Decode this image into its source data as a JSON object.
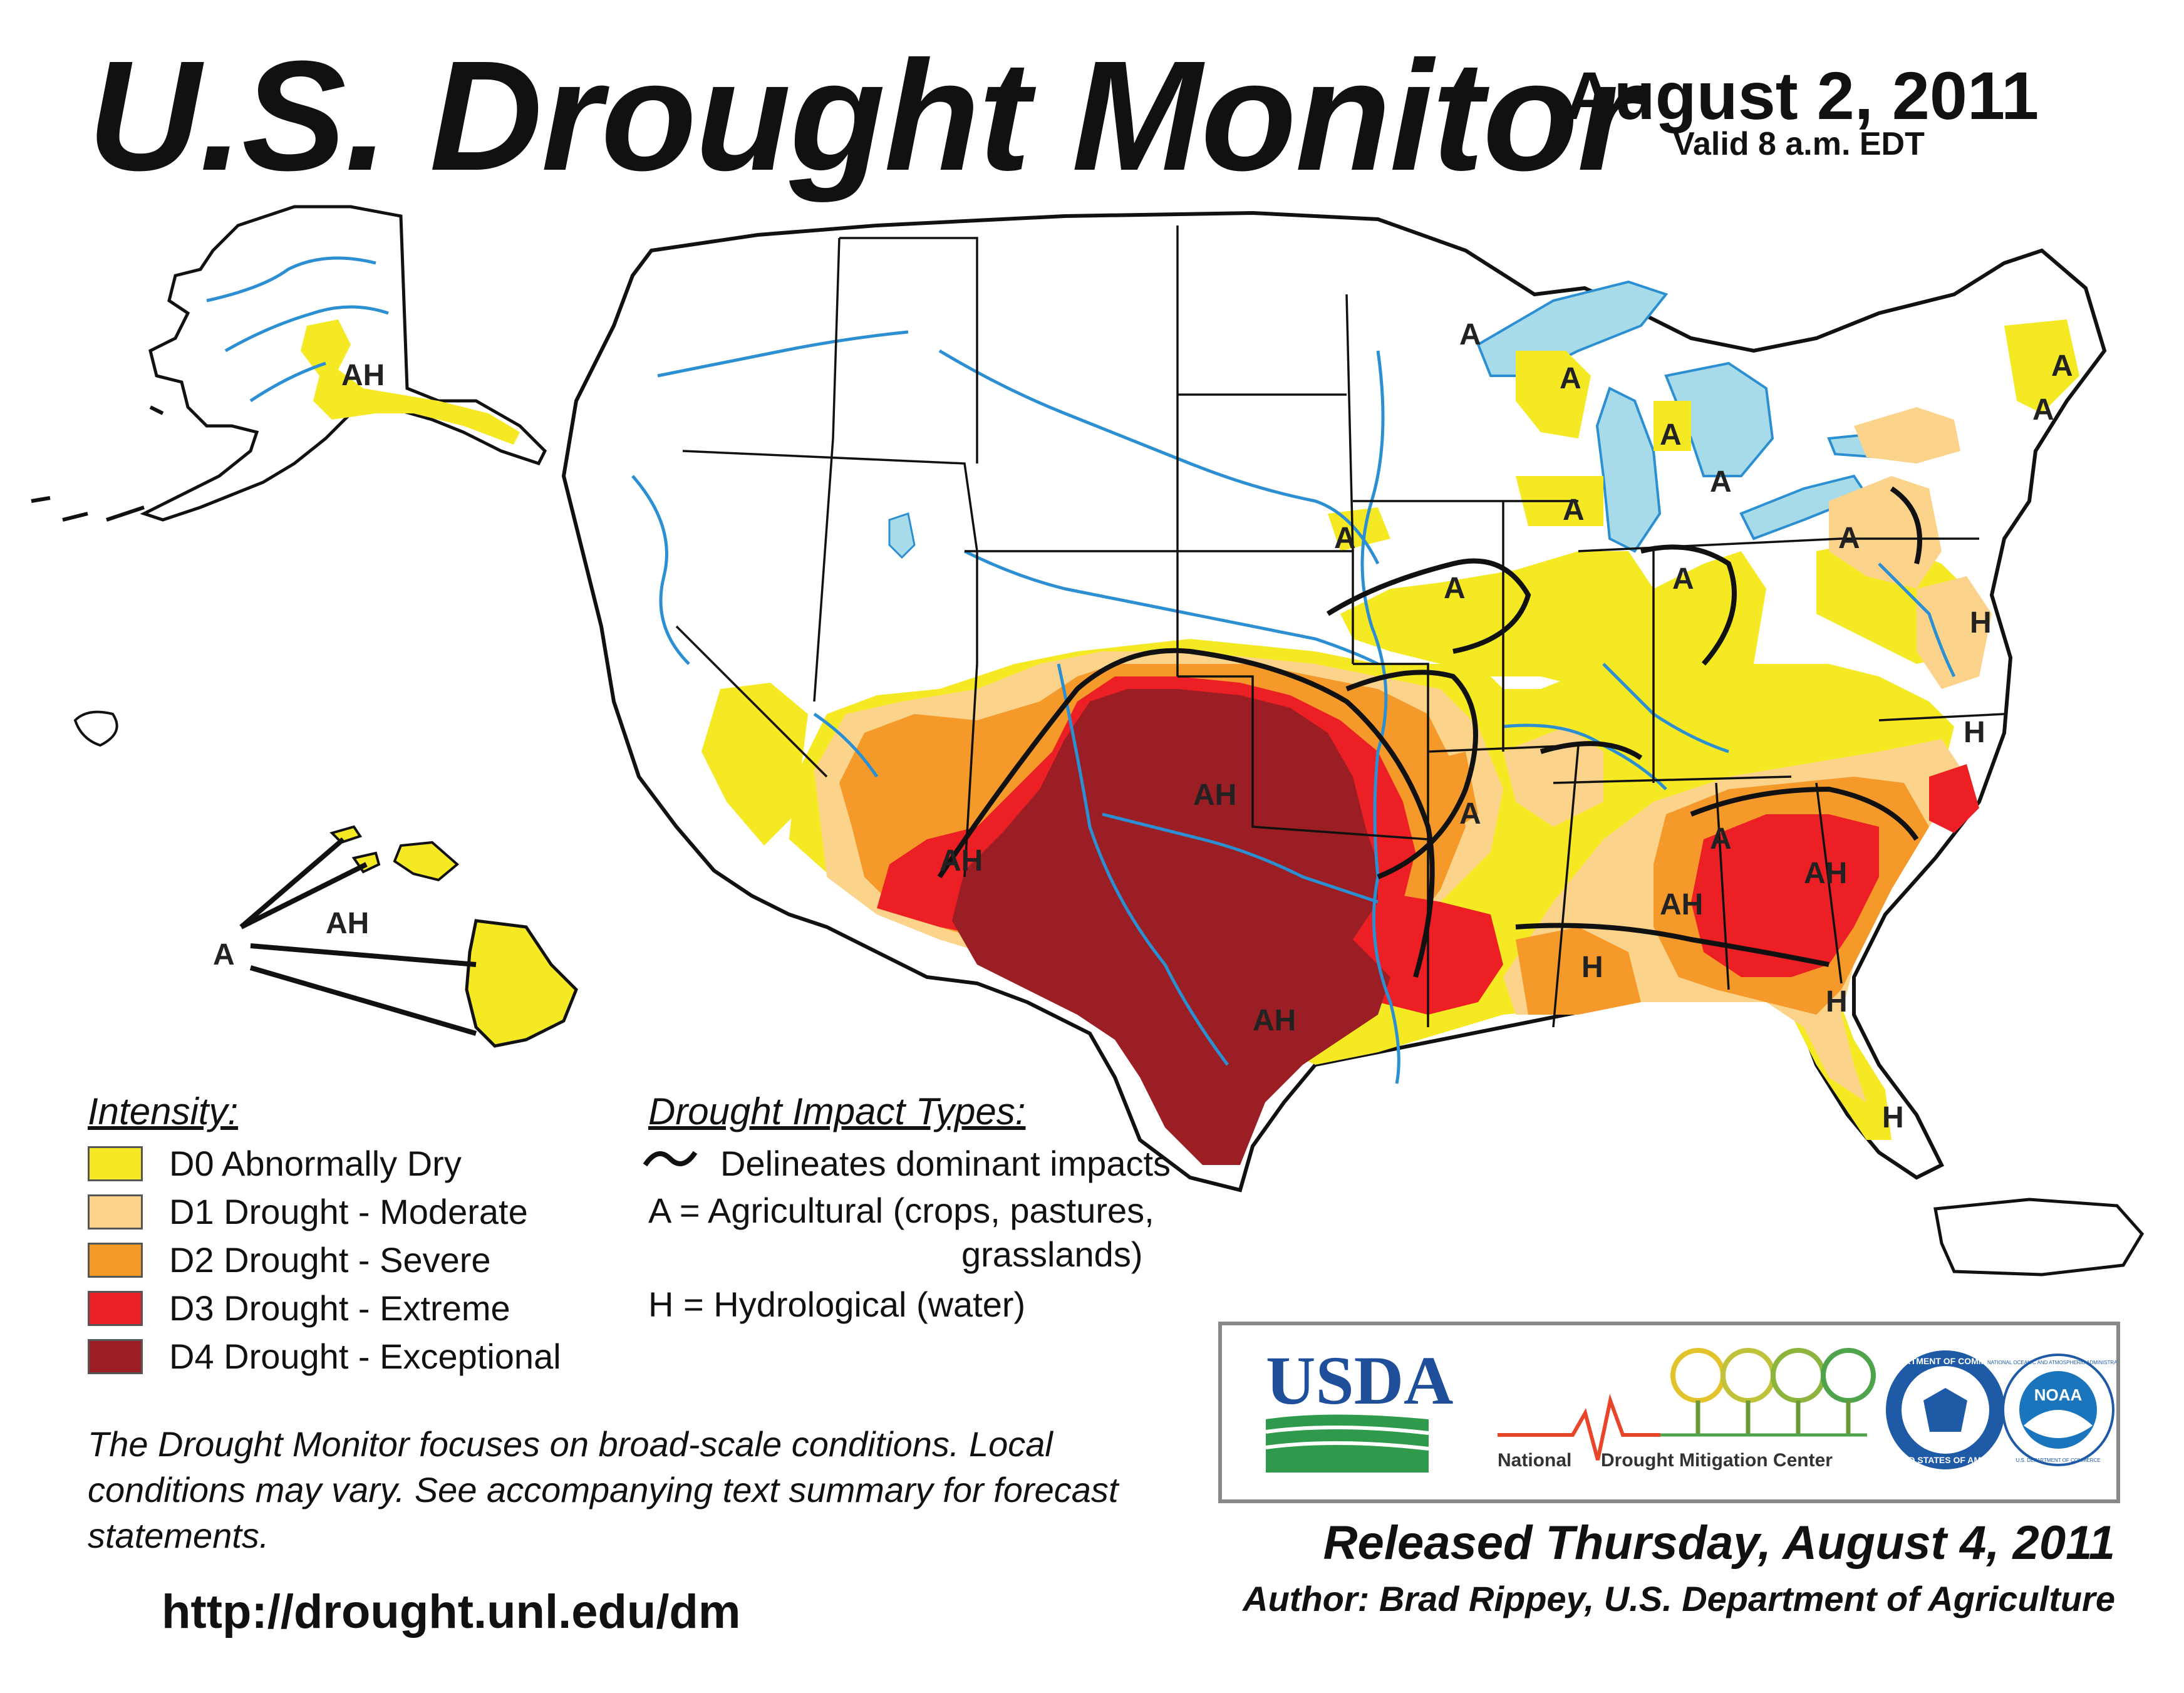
{
  "header": {
    "title": "U.S. Drought Monitor",
    "date": "August 2, 2011",
    "valid": "Valid 8 a.m. EDT"
  },
  "colors": {
    "D0": "#f5e923",
    "D1": "#fbd38a",
    "D2": "#f59a2a",
    "D3": "#ec2024",
    "D4": "#9b1e24",
    "water": "#a8dbea",
    "river": "#2b8fd2",
    "county_line": "#a0a0a0"
  },
  "legend": {
    "intensity_heading": "Intensity:",
    "items": [
      {
        "code": "D0",
        "label": "D0 Abnormally Dry"
      },
      {
        "code": "D1",
        "label": "D1 Drought - Moderate"
      },
      {
        "code": "D2",
        "label": "D2 Drought - Severe"
      },
      {
        "code": "D3",
        "label": "D3 Drought - Extreme"
      },
      {
        "code": "D4",
        "label": "D4 Drought - Exceptional"
      }
    ],
    "impact_heading": "Drought Impact Types:",
    "impact_lines": [
      "Delineates dominant impacts",
      "A = Agricultural (crops, pastures,",
      "grasslands)",
      "H = Hydrological (water)"
    ]
  },
  "map_labels": [
    "AH",
    "A",
    "A",
    "A",
    "A",
    "A",
    "A",
    "A",
    "A",
    "A",
    "H",
    "AH",
    "AH",
    "A",
    "A",
    "AH",
    "AH",
    "AH",
    "H",
    "H",
    "H",
    "A",
    "A",
    "AH",
    "H",
    "A",
    "AH"
  ],
  "note": "The Drought Monitor focuses on broad-scale conditions. Local conditions may vary. See accompanying text summary for forecast statements.",
  "url": "http://drought.unl.edu/dm",
  "released": "Released Thursday, August 4, 2011",
  "author": "Author: Brad Rippey, U.S. Department of Agriculture",
  "logos": {
    "usda": "USDA",
    "ndmc": "National Drought Mitigation Center",
    "ndmc_part1": "National",
    "ndmc_part2": "Drought Mitigation Center",
    "commerce_top": "DEPARTMENT OF COMMERCE",
    "commerce_bottom": "UNITED STATES OF AMERICA",
    "noaa_center": "NOAA",
    "noaa_ring": "NATIONAL OCEANIC AND ATMOSPHERIC ADMINISTRATION",
    "noaa_bottom": "U.S. DEPARTMENT OF COMMERCE"
  }
}
